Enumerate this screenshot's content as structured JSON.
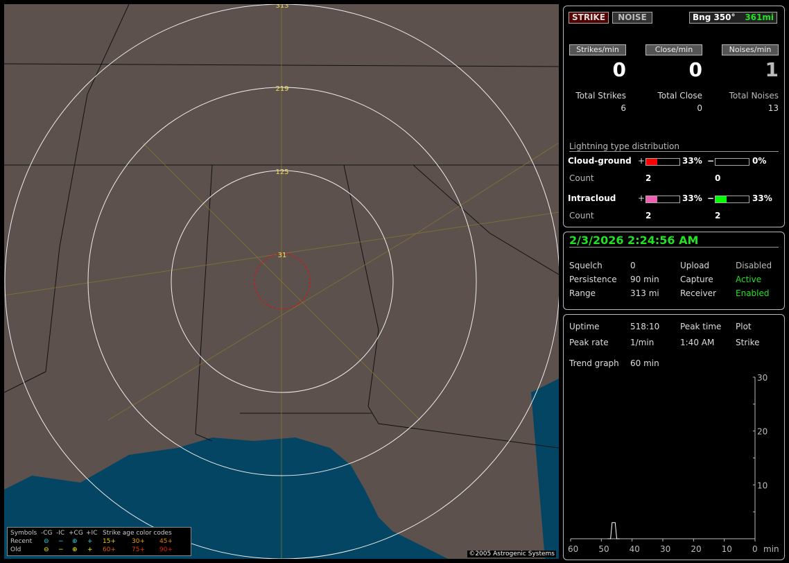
{
  "map": {
    "ring_labels": [
      "313",
      "219",
      "125",
      "31"
    ],
    "copyright": "©2005 Astrogenic Systems",
    "legend": {
      "headers": [
        "Symbols",
        "-CG",
        "-IC",
        "+CG",
        "+IC",
        "Strike age color codes"
      ],
      "recent_label": "Recent",
      "old_label": "Old",
      "recent_symbols": [
        "⊖",
        "−",
        "⊕",
        "+"
      ],
      "old_symbols": [
        "⊖",
        "−",
        "⊕",
        "+"
      ],
      "recent_ages": [
        "15+",
        "30+",
        "45+"
      ],
      "old_ages": [
        "60+",
        "75+",
        "90+"
      ],
      "recent_color": "#22d8f0",
      "old_color": "#f0f000",
      "age_colors": [
        "#f0d000",
        "#f0a000",
        "#e08000",
        "#e06000",
        "#e04000",
        "#e02000"
      ]
    }
  },
  "status": {
    "strike_label": "STRIKE",
    "noise_label": "NOISE",
    "bearing": "Bng 350°",
    "distance": "361mi",
    "strikes_per_min_label": "Strikes/min",
    "close_per_min_label": "Close/min",
    "noises_per_min_label": "Noises/min",
    "strikes_per_min": "0",
    "close_per_min": "0",
    "noises_per_min": "1",
    "total_strikes_label": "Total Strikes",
    "total_close_label": "Total Close",
    "total_noises_label": "Total Noises",
    "total_strikes": "6",
    "total_close": "0",
    "total_noises": "13"
  },
  "distribution": {
    "title": "Lightning type distribution",
    "cg_label": "Cloud-ground",
    "ic_label": "Intracloud",
    "count_label": "Count",
    "plus": "+",
    "minus": "−",
    "cg_plus_pct": "33%",
    "cg_minus_pct": "0%",
    "ic_plus_pct": "33%",
    "ic_minus_pct": "33%",
    "cg_plus_fill": 33,
    "cg_minus_fill": 0,
    "ic_plus_fill": 33,
    "ic_minus_fill": 33,
    "cg_plus_count": "2",
    "cg_minus_count": "0",
    "ic_plus_count": "2",
    "ic_minus_count": "2",
    "colors": {
      "cg_plus": "#ff0000",
      "cg_minus": "#00aaff",
      "ic_plus": "#f060b0",
      "ic_minus": "#00ff00"
    }
  },
  "settings": {
    "datetime": "2/3/2026 2:24:56 AM",
    "squelch_label": "Squelch",
    "squelch": "0",
    "persistence_label": "Persistence",
    "persistence": "90 min",
    "range_label": "Range",
    "range": "313 mi",
    "upload_label": "Upload",
    "upload": "Disabled",
    "capture_label": "Capture",
    "capture": "Active",
    "receiver_label": "Receiver",
    "receiver": "Enabled"
  },
  "stats": {
    "uptime_label": "Uptime",
    "uptime": "518:10",
    "peak_time_label": "Peak time",
    "peak_time": "1:40 AM",
    "plot_label": "Plot",
    "plot": "Strike",
    "peak_rate_label": "Peak rate",
    "peak_rate": "1/min",
    "trend_label": "Trend graph",
    "trend": "60 min"
  },
  "chart_data": {
    "type": "line",
    "x_ticks": [
      "60",
      "50",
      "40",
      "30",
      "20",
      "10",
      "0"
    ],
    "x_unit": "min",
    "y_ticks": [
      "10",
      "20",
      "30"
    ],
    "xlim": [
      60,
      0
    ],
    "ylim": [
      0,
      30
    ],
    "x": [
      48,
      47,
      46.5,
      45.5,
      45,
      44
    ],
    "y": [
      0,
      0,
      1,
      1,
      0,
      0
    ]
  }
}
